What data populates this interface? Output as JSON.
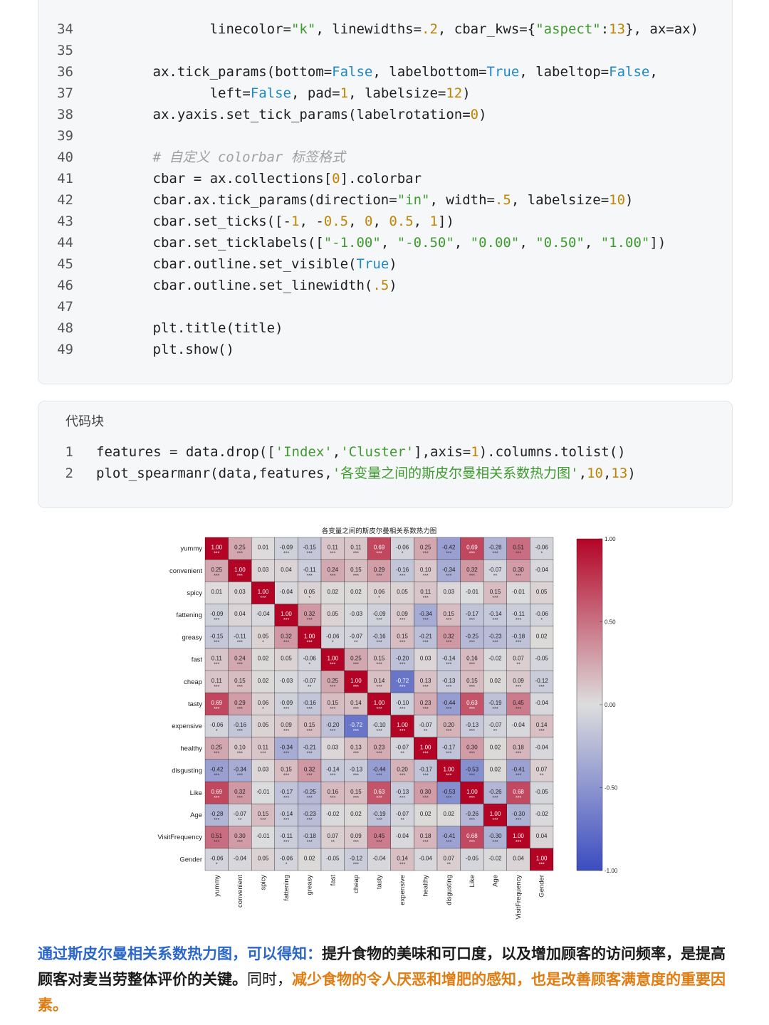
{
  "code_block_1": {
    "lines": [
      {
        "n": "34",
        "parts": [
          {
            "t": "               linecolor=",
            "c": ""
          },
          {
            "t": "\"k\"",
            "c": "str"
          },
          {
            "t": ", linewidths=",
            "c": ""
          },
          {
            "t": ".2",
            "c": "num"
          },
          {
            "t": ", cbar_kws={",
            "c": ""
          },
          {
            "t": "\"aspect\"",
            "c": "str"
          },
          {
            "t": ":",
            "c": ""
          },
          {
            "t": "13",
            "c": "num"
          },
          {
            "t": "}, ax=ax)",
            "c": ""
          }
        ]
      },
      {
        "n": "35",
        "parts": []
      },
      {
        "n": "36",
        "parts": [
          {
            "t": "        ax.tick_params(bottom=",
            "c": ""
          },
          {
            "t": "False",
            "c": "kw"
          },
          {
            "t": ", labelbottom=",
            "c": ""
          },
          {
            "t": "True",
            "c": "kw"
          },
          {
            "t": ", labeltop=",
            "c": ""
          },
          {
            "t": "False",
            "c": "kw"
          },
          {
            "t": ",",
            "c": ""
          }
        ]
      },
      {
        "n": "37",
        "parts": [
          {
            "t": "               left=",
            "c": ""
          },
          {
            "t": "False",
            "c": "kw"
          },
          {
            "t": ", pad=",
            "c": ""
          },
          {
            "t": "1",
            "c": "num"
          },
          {
            "t": ", labelsize=",
            "c": ""
          },
          {
            "t": "12",
            "c": "num"
          },
          {
            "t": ")",
            "c": ""
          }
        ]
      },
      {
        "n": "38",
        "parts": [
          {
            "t": "        ax.yaxis.set_tick_params(labelrotation=",
            "c": ""
          },
          {
            "t": "0",
            "c": "num"
          },
          {
            "t": ")",
            "c": ""
          }
        ]
      },
      {
        "n": "39",
        "parts": []
      },
      {
        "n": "40",
        "parts": [
          {
            "t": "        # 自定义 colorbar 标签格式",
            "c": "cm"
          }
        ]
      },
      {
        "n": "41",
        "parts": [
          {
            "t": "        cbar = ax.collections[",
            "c": ""
          },
          {
            "t": "0",
            "c": "num"
          },
          {
            "t": "].colorbar",
            "c": ""
          }
        ]
      },
      {
        "n": "42",
        "parts": [
          {
            "t": "        cbar.ax.tick_params(direction=",
            "c": ""
          },
          {
            "t": "\"in\"",
            "c": "str"
          },
          {
            "t": ", width=",
            "c": ""
          },
          {
            "t": ".5",
            "c": "num"
          },
          {
            "t": ", labelsize=",
            "c": ""
          },
          {
            "t": "10",
            "c": "num"
          },
          {
            "t": ")",
            "c": ""
          }
        ]
      },
      {
        "n": "43",
        "parts": [
          {
            "t": "        cbar.set_ticks([-",
            "c": ""
          },
          {
            "t": "1",
            "c": "num"
          },
          {
            "t": ", -",
            "c": ""
          },
          {
            "t": "0.5",
            "c": "num"
          },
          {
            "t": ", ",
            "c": ""
          },
          {
            "t": "0",
            "c": "num"
          },
          {
            "t": ", ",
            "c": ""
          },
          {
            "t": "0.5",
            "c": "num"
          },
          {
            "t": ", ",
            "c": ""
          },
          {
            "t": "1",
            "c": "num"
          },
          {
            "t": "])",
            "c": ""
          }
        ]
      },
      {
        "n": "44",
        "parts": [
          {
            "t": "        cbar.set_ticklabels([",
            "c": ""
          },
          {
            "t": "\"-1.00\"",
            "c": "str"
          },
          {
            "t": ", ",
            "c": ""
          },
          {
            "t": "\"-0.50\"",
            "c": "str"
          },
          {
            "t": ", ",
            "c": ""
          },
          {
            "t": "\"0.00\"",
            "c": "str"
          },
          {
            "t": ", ",
            "c": ""
          },
          {
            "t": "\"0.50\"",
            "c": "str"
          },
          {
            "t": ", ",
            "c": ""
          },
          {
            "t": "\"1.00\"",
            "c": "str"
          },
          {
            "t": "])",
            "c": ""
          }
        ]
      },
      {
        "n": "45",
        "parts": [
          {
            "t": "        cbar.outline.set_visible(",
            "c": ""
          },
          {
            "t": "True",
            "c": "kw"
          },
          {
            "t": ")",
            "c": ""
          }
        ]
      },
      {
        "n": "46",
        "parts": [
          {
            "t": "        cbar.outline.set_linewidth(",
            "c": ""
          },
          {
            "t": ".5",
            "c": "num"
          },
          {
            "t": ")",
            "c": ""
          }
        ]
      },
      {
        "n": "47",
        "parts": []
      },
      {
        "n": "48",
        "parts": [
          {
            "t": "        plt.title(title)",
            "c": ""
          }
        ]
      },
      {
        "n": "49",
        "parts": [
          {
            "t": "        plt.show()",
            "c": ""
          }
        ]
      }
    ]
  },
  "code_block_2": {
    "label": "代码块",
    "lines": [
      {
        "n": "1",
        "parts": [
          {
            "t": "features = data.drop([",
            "c": ""
          },
          {
            "t": "'Index'",
            "c": "str"
          },
          {
            "t": ",",
            "c": ""
          },
          {
            "t": "'Cluster'",
            "c": "str"
          },
          {
            "t": "],axis=",
            "c": ""
          },
          {
            "t": "1",
            "c": "num"
          },
          {
            "t": ").columns.tolist()",
            "c": ""
          }
        ]
      },
      {
        "n": "2",
        "parts": [
          {
            "t": "plot_spearmanr(data,features,",
            "c": ""
          },
          {
            "t": "'各变量之间的斯皮尔曼相关系数热力图'",
            "c": "str"
          },
          {
            "t": ",",
            "c": ""
          },
          {
            "t": "10",
            "c": "num"
          },
          {
            "t": ",",
            "c": ""
          },
          {
            "t": "13",
            "c": "num"
          },
          {
            "t": ")",
            "c": ""
          }
        ]
      }
    ]
  },
  "chart_data": {
    "type": "heatmap",
    "title": "各变量之间的斯皮尔曼相关系数热力图",
    "labels": [
      "yummy",
      "convenient",
      "spicy",
      "fattening",
      "greasy",
      "fast",
      "cheap",
      "tasty",
      "expensive",
      "healthy",
      "disgusting",
      "Like",
      "Age",
      "VisitFrequency",
      "Gender"
    ],
    "values": [
      [
        1.0,
        0.25,
        0.01,
        -0.09,
        -0.15,
        0.11,
        0.11,
        0.69,
        -0.06,
        0.25,
        -0.42,
        0.69,
        -0.28,
        0.51,
        -0.06
      ],
      [
        0.25,
        1.0,
        0.03,
        0.04,
        -0.11,
        0.24,
        0.15,
        0.29,
        -0.16,
        0.1,
        -0.34,
        0.32,
        -0.07,
        0.3,
        -0.04
      ],
      [
        0.01,
        0.03,
        1.0,
        -0.04,
        0.05,
        0.02,
        0.02,
        0.06,
        0.05,
        0.11,
        0.03,
        -0.01,
        0.15,
        -0.01,
        0.05
      ],
      [
        -0.09,
        0.04,
        -0.04,
        1.0,
        0.32,
        0.05,
        -0.03,
        -0.09,
        0.09,
        -0.34,
        0.15,
        -0.17,
        -0.14,
        -0.11,
        -0.06
      ],
      [
        -0.15,
        -0.11,
        0.05,
        0.32,
        1.0,
        -0.06,
        -0.07,
        -0.16,
        0.15,
        -0.21,
        0.32,
        -0.25,
        -0.23,
        -0.18,
        0.02
      ],
      [
        0.11,
        0.24,
        0.02,
        0.05,
        -0.06,
        1.0,
        0.25,
        0.15,
        -0.2,
        0.03,
        -0.14,
        0.16,
        -0.02,
        0.07,
        -0.05
      ],
      [
        0.11,
        0.15,
        0.02,
        -0.03,
        -0.07,
        0.25,
        1.0,
        0.14,
        -0.72,
        0.13,
        -0.13,
        0.15,
        0.02,
        0.09,
        -0.12
      ],
      [
        0.69,
        0.29,
        0.06,
        -0.09,
        -0.16,
        0.15,
        0.14,
        1.0,
        -0.1,
        0.23,
        -0.44,
        0.63,
        -0.19,
        0.45,
        -0.04
      ],
      [
        -0.06,
        -0.16,
        0.05,
        0.09,
        0.15,
        -0.2,
        -0.72,
        -0.1,
        1.0,
        -0.07,
        0.2,
        -0.13,
        -0.07,
        -0.04,
        0.14
      ],
      [
        0.25,
        0.1,
        0.11,
        -0.34,
        -0.21,
        0.03,
        0.13,
        0.23,
        -0.07,
        1.0,
        -0.17,
        0.3,
        0.02,
        0.18,
        -0.04
      ],
      [
        -0.42,
        -0.34,
        0.03,
        0.15,
        0.32,
        -0.14,
        -0.13,
        -0.44,
        0.2,
        -0.17,
        1.0,
        -0.53,
        0.02,
        -0.41,
        0.07
      ],
      [
        0.69,
        0.32,
        -0.01,
        -0.17,
        -0.25,
        0.16,
        0.15,
        0.63,
        -0.13,
        0.3,
        -0.53,
        1.0,
        -0.26,
        0.68,
        -0.05
      ],
      [
        -0.28,
        -0.07,
        0.15,
        -0.14,
        -0.23,
        -0.02,
        0.02,
        -0.19,
        -0.07,
        0.02,
        0.02,
        -0.26,
        1.0,
        -0.3,
        -0.02
      ],
      [
        0.51,
        0.3,
        -0.01,
        -0.11,
        -0.18,
        0.07,
        0.09,
        0.45,
        -0.04,
        0.18,
        -0.41,
        0.68,
        -0.3,
        1.0,
        0.04
      ],
      [
        -0.06,
        -0.04,
        0.05,
        -0.06,
        0.02,
        -0.05,
        -0.12,
        -0.04,
        0.14,
        -0.04,
        0.07,
        -0.05,
        -0.02,
        0.04,
        1.0
      ]
    ],
    "significance": [
      [
        "***",
        "***",
        "",
        "***",
        "***",
        "***",
        "***",
        "***",
        "*",
        "***",
        "***",
        "***",
        "***",
        "***",
        "*"
      ],
      [
        "***",
        "***",
        "",
        "",
        "***",
        "***",
        "***",
        "***",
        "***",
        "***",
        "***",
        "***",
        "**",
        "***",
        ""
      ],
      [
        "",
        "",
        "***",
        "",
        "*",
        "",
        "",
        "*",
        "",
        "***",
        "",
        "",
        "***",
        "",
        ""
      ],
      [
        "***",
        "",
        "",
        "***",
        "***",
        "",
        "",
        "***",
        "***",
        "***",
        "***",
        "***",
        "***",
        "***",
        "*"
      ],
      [
        "***",
        "***",
        "*",
        "***",
        "***",
        "*",
        "**",
        "***",
        "***",
        "***",
        "***",
        "***",
        "***",
        "***",
        ""
      ],
      [
        "***",
        "***",
        "",
        "",
        "*",
        "***",
        "***",
        "***",
        "***",
        "",
        "***",
        "***",
        "",
        "**",
        ""
      ],
      [
        "***",
        "***",
        "",
        "",
        "**",
        "***",
        "***",
        "***",
        "***",
        "***",
        "***",
        "***",
        "",
        "***",
        "***"
      ],
      [
        "***",
        "***",
        "*",
        "***",
        "***",
        "***",
        "***",
        "***",
        "***",
        "***",
        "***",
        "***",
        "***",
        "***",
        ""
      ],
      [
        "*",
        "***",
        "",
        "***",
        "***",
        "***",
        "***",
        "***",
        "***",
        "**",
        "***",
        "***",
        "**",
        "",
        "***"
      ],
      [
        "***",
        "***",
        "***",
        "***",
        "***",
        "",
        "***",
        "***",
        "**",
        "***",
        "***",
        "***",
        "",
        "***",
        ""
      ],
      [
        "***",
        "***",
        "",
        "***",
        "***",
        "***",
        "***",
        "***",
        "***",
        "***",
        "***",
        "***",
        "",
        "***",
        "**"
      ],
      [
        "***",
        "***",
        "",
        "***",
        "***",
        "***",
        "***",
        "***",
        "***",
        "***",
        "***",
        "***",
        "***",
        "***",
        ""
      ],
      [
        "***",
        "**",
        "***",
        "***",
        "***",
        "",
        "",
        "***",
        "**",
        "",
        "",
        "***",
        "***",
        "***",
        ""
      ],
      [
        "***",
        "***",
        "",
        "***",
        "***",
        "**",
        "***",
        "***",
        "",
        "***",
        "***",
        "***",
        "***",
        "***",
        ""
      ],
      [
        "*",
        "",
        "",
        "*",
        "",
        "",
        "***",
        "",
        "***",
        "",
        "**",
        "",
        "",
        "",
        "***"
      ]
    ],
    "colorbar": {
      "ticks": [
        "1.00",
        "0.50",
        "0.00",
        "-0.50",
        "-1.00"
      ],
      "range": [
        -1,
        1
      ]
    },
    "colors": {
      "negative": "#3b4cc0",
      "neutral": "#dddddd",
      "positive": "#b40426"
    }
  },
  "summary": {
    "blue_lead": "通过斯皮尔曼相关系数热力图，可以得知：",
    "bold_1": "提升食物的美味和可口度，以及增加顾客的访问频率，是提高顾客对麦当劳整体评价的关键。",
    "plain_1": "同时，",
    "orange_1": "减少食物的令人厌恶和增肥的感知，也是改善顾客满意度的重要因素。"
  }
}
